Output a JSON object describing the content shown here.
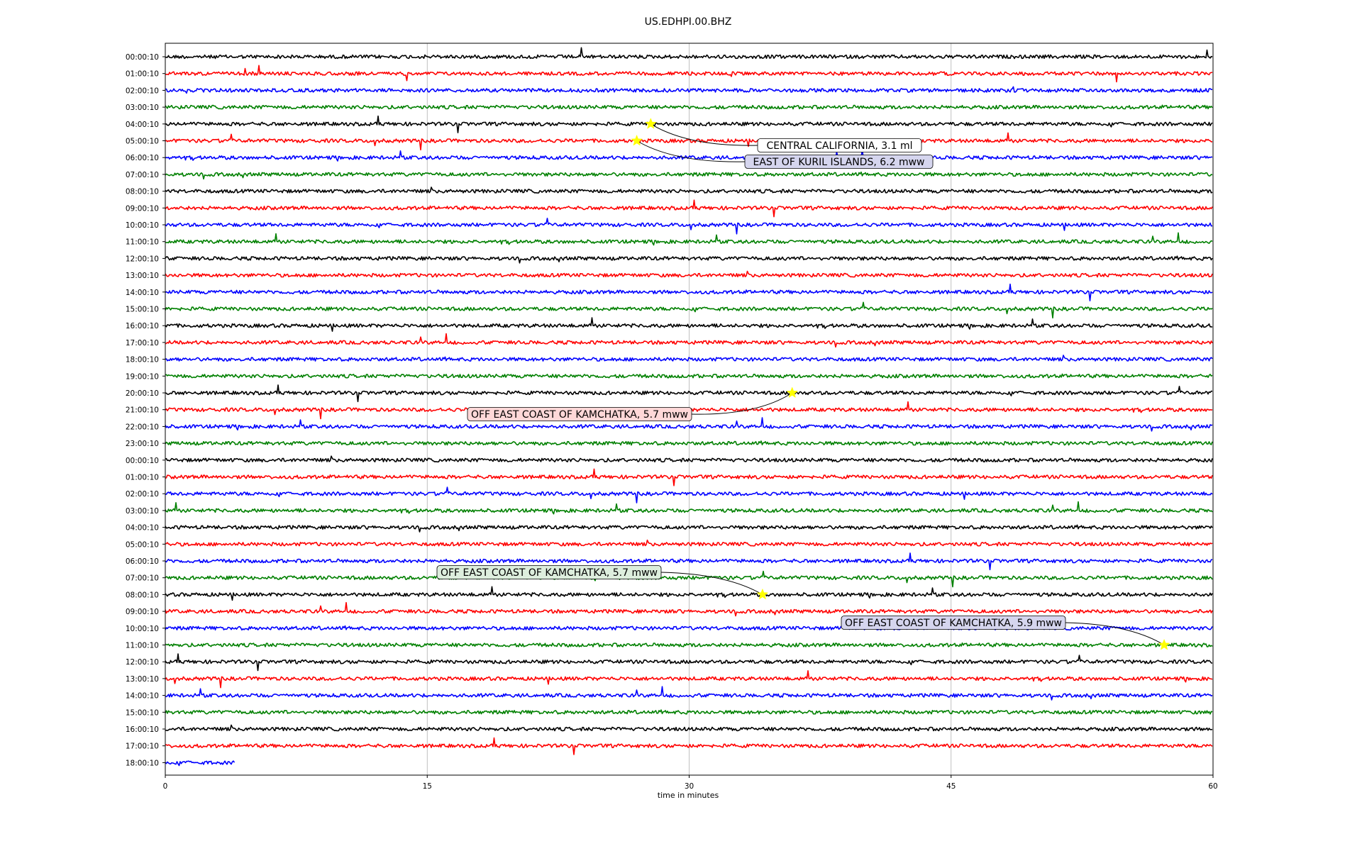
{
  "chart_data": {
    "type": "line",
    "title": "US.EDHPI.00.BHZ",
    "xlabel": "time in minutes",
    "ylabel": "",
    "xlim": [
      0,
      60
    ],
    "x_ticks": [
      "0",
      "15",
      "30",
      "45",
      "60"
    ],
    "grid": "vertical",
    "trace_colors": [
      "#000000",
      "#ff0000",
      "#0000ff",
      "#008000"
    ],
    "row_labels": [
      "00:00:10",
      "01:00:10",
      "02:00:10",
      "03:00:10",
      "04:00:10",
      "05:00:10",
      "06:00:10",
      "07:00:10",
      "08:00:10",
      "09:00:10",
      "10:00:10",
      "11:00:10",
      "12:00:10",
      "13:00:10",
      "14:00:10",
      "15:00:10",
      "16:00:10",
      "17:00:10",
      "18:00:10",
      "19:00:10",
      "20:00:10",
      "21:00:10",
      "22:00:10",
      "23:00:10",
      "00:00:10",
      "01:00:10",
      "02:00:10",
      "03:00:10",
      "04:00:10",
      "05:00:10",
      "06:00:10",
      "07:00:10",
      "08:00:10",
      "09:00:10",
      "10:00:10",
      "11:00:10",
      "12:00:10",
      "13:00:10",
      "14:00:10",
      "15:00:10",
      "16:00:10",
      "17:00:10",
      "18:00:10"
    ],
    "last_row_end_minute": 4,
    "events": [
      {
        "row": 4,
        "minute": 27.8,
        "label": "CENTRAL CALIFORNIA, 3.1 ml",
        "box_color": "#ffffff"
      },
      {
        "row": 5,
        "minute": 27.0,
        "label": "EAST OF KURIL ISLANDS, 6.2 mww",
        "box_color": "#d5d5ee"
      },
      {
        "row": 20,
        "minute": 35.9,
        "label": "OFF EAST COAST OF KAMCHATKA, 5.7 mww",
        "box_color": "#ffd8d8"
      },
      {
        "row": 32,
        "minute": 34.2,
        "label": "OFF EAST COAST OF KAMCHATKA, 5.7 mww",
        "box_color": "#ddeedd"
      },
      {
        "row": 35,
        "minute": 57.2,
        "label": "OFF EAST COAST OF KAMCHATKA, 5.9 mww",
        "box_color": "#d5d5ee"
      }
    ],
    "marker_color": "#ffff00"
  }
}
